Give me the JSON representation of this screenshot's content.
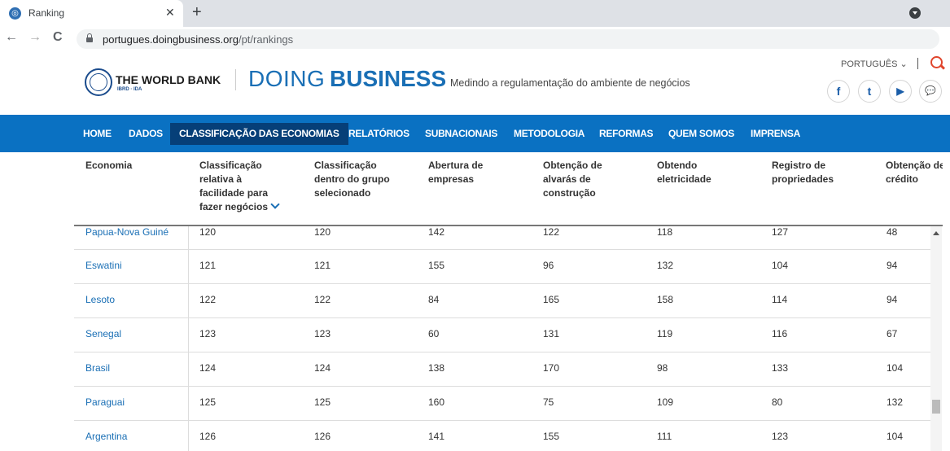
{
  "browser": {
    "tab_title": "Ranking",
    "tab_close": "✕",
    "new_tab": "+",
    "back": "←",
    "forward": "→",
    "reload": "C",
    "url_host": "portugues.doingbusiness.org",
    "url_path": "/pt/rankings"
  },
  "header": {
    "wb_title": "THE WORLD BANK",
    "wb_sub": "IBRD · IDA",
    "doing": "DOING",
    "business": "BUSINESS",
    "tagline": "Medindo a regulamentação do ambiente de negócios",
    "language": "PORTUGUÊS ⌄",
    "social": [
      "f",
      "t",
      "▶",
      "💬"
    ]
  },
  "nav": [
    "HOME",
    "DADOS",
    "CLASSIFICAÇÃO DAS ECONOMIAS",
    "RELATÓRIOS",
    "SUBNACIONAIS",
    "METODOLOGIA",
    "REFORMAS",
    "QUEM SOMOS",
    "IMPRENSA"
  ],
  "nav_active": 2,
  "table": {
    "headers": [
      "Economia",
      "Classificação relativa à facilidade para fazer negócios",
      "Classificação dentro do grupo selecionado",
      "Abertura de empresas",
      "Obtenção de alvarás de construção",
      "Obtendo eletricidade",
      "Registro de propriedades",
      "Obtenção de crédito"
    ],
    "rows": [
      [
        "Papua-Nova Guiné",
        "120",
        "120",
        "142",
        "122",
        "118",
        "127",
        "48"
      ],
      [
        "Eswatini",
        "121",
        "121",
        "155",
        "96",
        "132",
        "104",
        "94"
      ],
      [
        "Lesoto",
        "122",
        "122",
        "84",
        "165",
        "158",
        "114",
        "94"
      ],
      [
        "Senegal",
        "123",
        "123",
        "60",
        "131",
        "119",
        "116",
        "67"
      ],
      [
        "Brasil",
        "124",
        "124",
        "138",
        "170",
        "98",
        "133",
        "104"
      ],
      [
        "Paraguai",
        "125",
        "125",
        "160",
        "75",
        "109",
        "80",
        "132"
      ],
      [
        "Argentina",
        "126",
        "126",
        "141",
        "155",
        "111",
        "123",
        "104"
      ]
    ]
  }
}
